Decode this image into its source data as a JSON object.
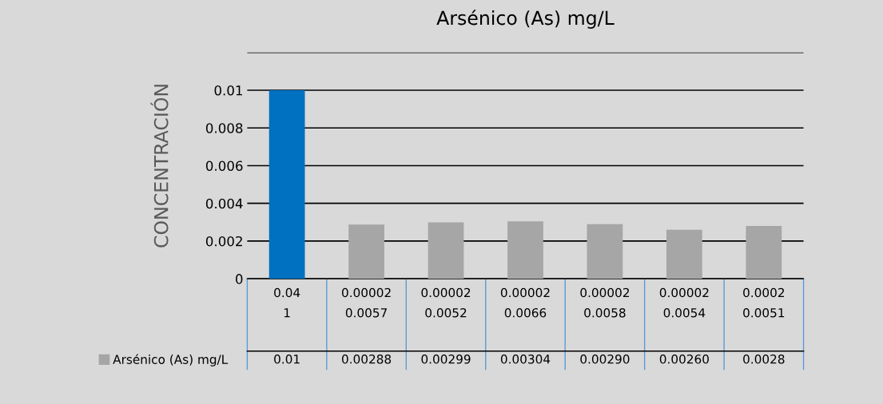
{
  "chart_data": {
    "type": "bar",
    "title": "Arsénico (As) mg/L",
    "ylabel": "CONCENTRACIÓN",
    "categories": [
      "0.04\n1",
      "0.00002\n0.0057",
      "0.00002\n0.0052",
      "0.00002\n0.0066",
      "0.00002\n0.0058",
      "0.00002\n0.0054",
      "0.0002\n0.0051"
    ],
    "series": [
      {
        "name": "Arsénico (As) mg/L",
        "color": "#a6a6a6",
        "colors": [
          "#0070c0",
          "#a6a6a6",
          "#a6a6a6",
          "#a6a6a6",
          "#a6a6a6",
          "#a6a6a6",
          "#a6a6a6"
        ],
        "values": [
          0.01,
          0.00288,
          0.00299,
          0.00304,
          0.0029,
          0.0026,
          0.0028
        ],
        "value_labels": [
          "0.01",
          "0.00288",
          "0.00299",
          "0.00304",
          "0.00290",
          "0.00260",
          "0.0028"
        ]
      }
    ],
    "ylim": [
      0,
      0.012
    ],
    "yticks": [
      0,
      0.002,
      0.004,
      0.006,
      0.008,
      0.01,
      {
        "value": 0.012,
        "label": null
      }
    ],
    "grid": "y",
    "legend": "bottom left"
  }
}
